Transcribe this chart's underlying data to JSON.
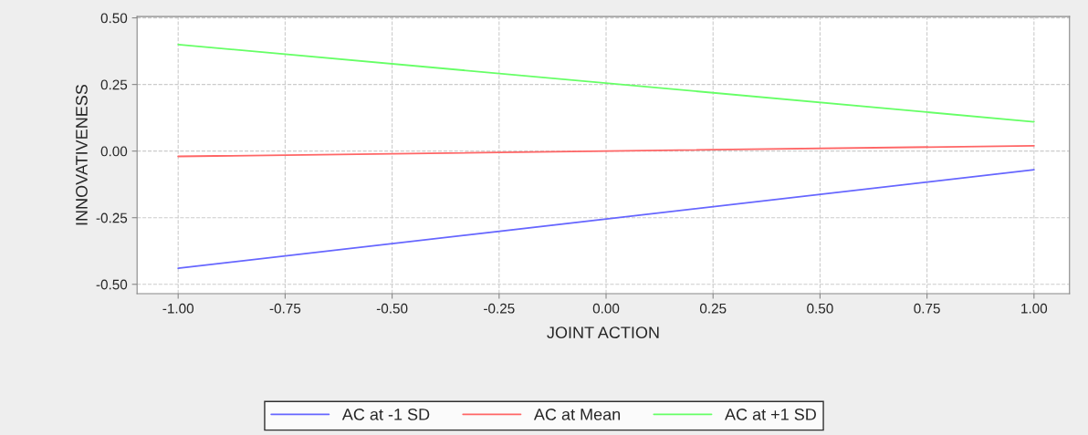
{
  "chart_data": {
    "type": "line",
    "xlabel": "JOINT ACTION",
    "ylabel": "INNOVATIVENESS",
    "x": [
      -1.0,
      1.0
    ],
    "series": [
      {
        "name": "AC at -1 SD",
        "color": "#6666ff",
        "values": [
          -0.44,
          -0.07
        ]
      },
      {
        "name": "AC at Mean",
        "color": "#ff6666",
        "values": [
          -0.02,
          0.02
        ]
      },
      {
        "name": "AC at +1 SD",
        "color": "#66ff66",
        "values": [
          0.4,
          0.11
        ]
      }
    ],
    "xlim": [
      -1.096,
      1.083
    ],
    "xticks": [
      {
        "value": -1.0,
        "label": "-1.00"
      },
      {
        "value": -0.75,
        "label": "-0.75"
      },
      {
        "value": -0.5,
        "label": "-0.50"
      },
      {
        "value": -0.25,
        "label": "-0.25"
      },
      {
        "value": 0.0,
        "label": "0.00"
      },
      {
        "value": 0.25,
        "label": "0.25"
      },
      {
        "value": 0.5,
        "label": "0.50"
      },
      {
        "value": 0.75,
        "label": "0.75"
      },
      {
        "value": 1.0,
        "label": "1.00"
      }
    ],
    "ylim": [
      -0.535,
      0.505
    ],
    "yticks": [
      {
        "value": -0.5,
        "label": "-0.50"
      },
      {
        "value": -0.25,
        "label": "-0.25"
      },
      {
        "value": 0.0,
        "label": "0.00"
      },
      {
        "value": 0.25,
        "label": "0.25"
      },
      {
        "value": 0.5,
        "label": "0.50"
      }
    ],
    "grid": true,
    "legend": "bottom",
    "marker": "none",
    "line_style": "solid"
  }
}
